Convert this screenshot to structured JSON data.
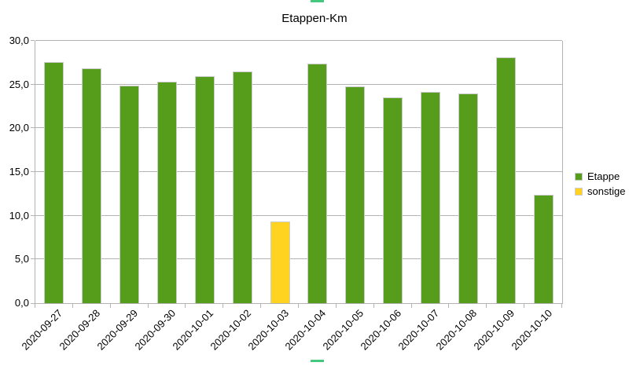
{
  "chart_data": {
    "type": "bar",
    "title": "Etappen-Km",
    "categories": [
      "2020-09-27",
      "2020-09-28",
      "2020-09-29",
      "2020-09-30",
      "2020-10-01",
      "2020-10-02",
      "2020-10-03",
      "2020-10-04",
      "2020-10-05",
      "2020-10-06",
      "2020-10-07",
      "2020-10-08",
      "2020-10-09",
      "2020-10-10"
    ],
    "series": [
      {
        "name": "Etappe",
        "color": "#579D1C",
        "values": [
          27.6,
          26.9,
          24.9,
          25.3,
          26.0,
          26.5,
          null,
          27.4,
          24.8,
          23.5,
          24.2,
          24.0,
          28.1,
          12.4
        ]
      },
      {
        "name": "sonstige",
        "color": "#FFD320",
        "values": [
          null,
          null,
          null,
          null,
          null,
          null,
          9.3,
          null,
          null,
          null,
          null,
          null,
          null,
          null
        ]
      }
    ],
    "xlabel": "",
    "ylabel": "",
    "ylim": [
      0,
      30
    ],
    "ytick_step": 5,
    "ytick_labels": [
      "0,0",
      "5,0",
      "10,0",
      "15,0",
      "20,0",
      "25,0",
      "30,0"
    ],
    "grid": "horizontal-only",
    "legend_position": "right",
    "x_label_rotation_deg": 45
  },
  "colors": {
    "grid": "#b3b3b3",
    "bar_border": "#cccccc",
    "selection_handle": "#44c87e",
    "text": "#000000",
    "background": "#ffffff"
  }
}
